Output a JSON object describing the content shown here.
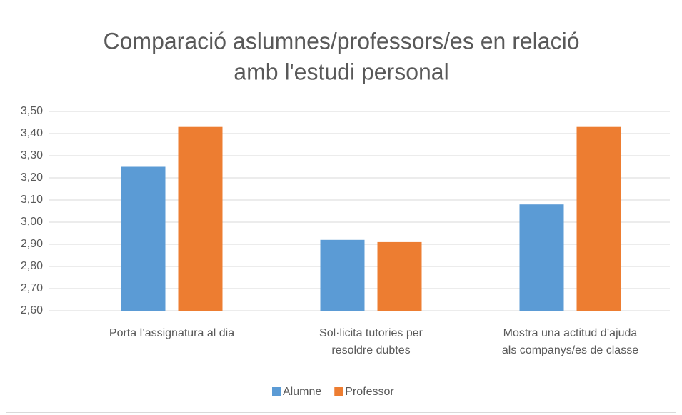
{
  "chart_data": {
    "type": "bar",
    "title": [
      "Comparació aslumnes/professors/es en relació",
      "amb l'estudi personal"
    ],
    "categories": [
      [
        "Porta l’assignatura al dia"
      ],
      [
        "Sol·licita tutories per",
        "resoldre dubtes"
      ],
      [
        "Mostra una actitud d’ajuda",
        "als companys/es de classe"
      ]
    ],
    "series": [
      {
        "name": "Alumne",
        "color": "#5b9bd5",
        "values": [
          3.25,
          2.92,
          3.08
        ]
      },
      {
        "name": "Professor",
        "color": "#ed7d31",
        "values": [
          3.43,
          2.91,
          3.43
        ]
      }
    ],
    "ylim": [
      2.6,
      3.5
    ],
    "yticks": [
      {
        "value": 2.6,
        "label": "2,60"
      },
      {
        "value": 2.7,
        "label": "2,70"
      },
      {
        "value": 2.8,
        "label": "2,80"
      },
      {
        "value": 2.9,
        "label": "2,90"
      },
      {
        "value": 3.0,
        "label": "3,00"
      },
      {
        "value": 3.1,
        "label": "3,10"
      },
      {
        "value": 3.2,
        "label": "3,20"
      },
      {
        "value": 3.3,
        "label": "3,30"
      },
      {
        "value": 3.4,
        "label": "3,40"
      },
      {
        "value": 3.5,
        "label": "3,50"
      }
    ],
    "grid": true,
    "legend": "bottom"
  }
}
